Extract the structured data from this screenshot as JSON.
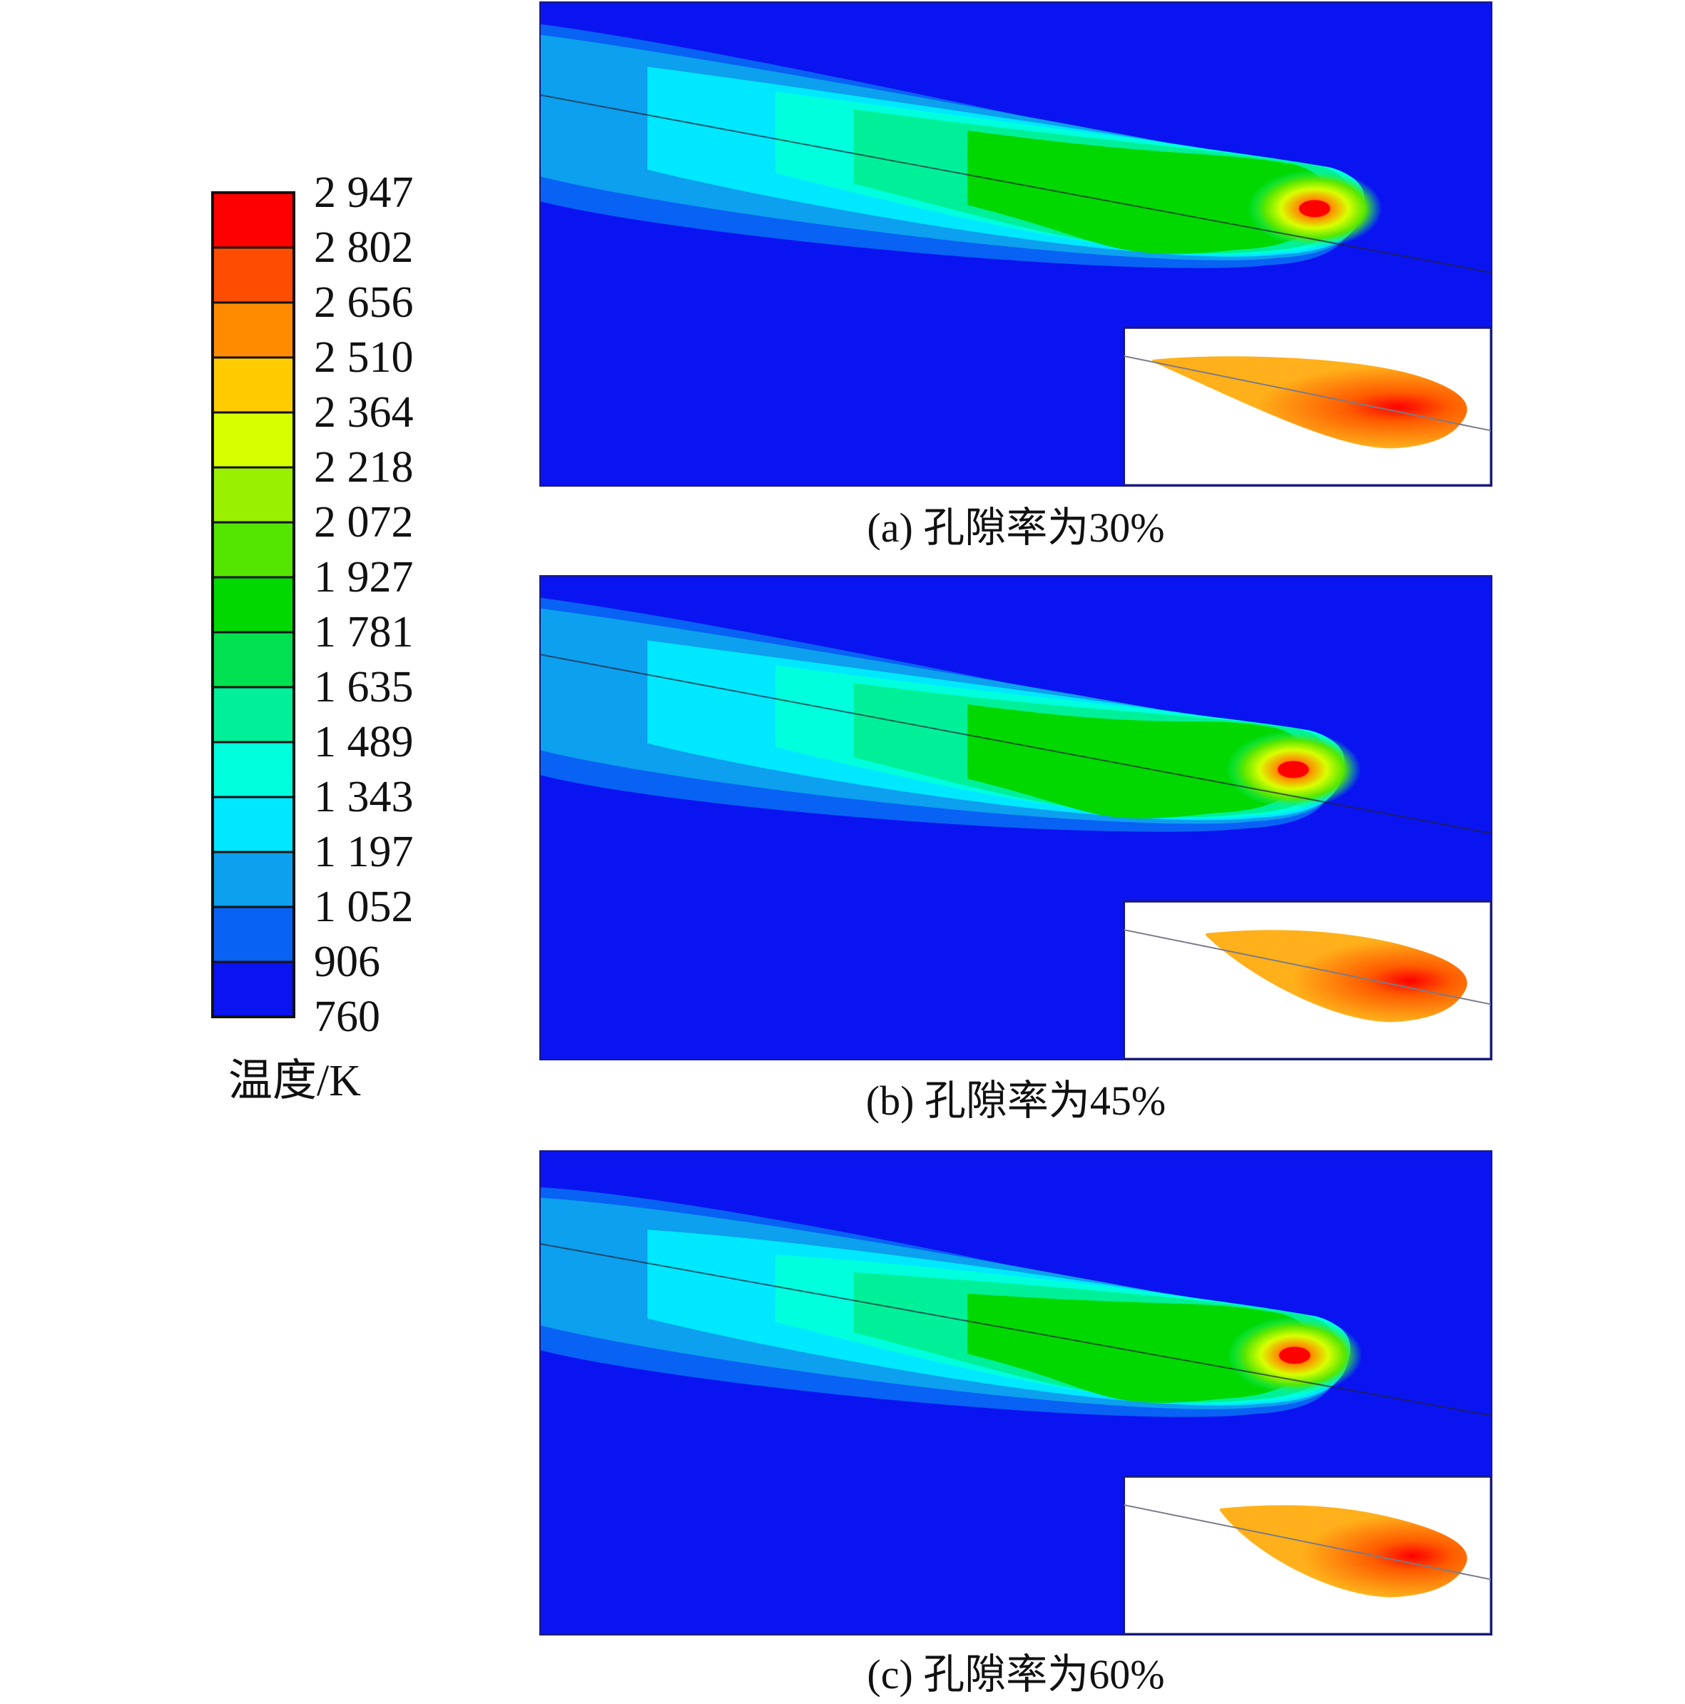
{
  "legend": {
    "title": "温度/K",
    "labels": [
      "2 947",
      "2 802",
      "2 656",
      "2 510",
      "2 364",
      "2 218",
      "2 072",
      "1 927",
      "1 781",
      "1 635",
      "1 489",
      "1 343",
      "1 197",
      "1 052",
      "906",
      "760"
    ],
    "colors": [
      "#ff0000",
      "#ff4d00",
      "#ff8c00",
      "#ffcc00",
      "#d8ff00",
      "#99f000",
      "#55e600",
      "#00d800",
      "#00e050",
      "#00f09a",
      "#00ffdd",
      "#00e8ff",
      "#0ca0ee",
      "#0862f4",
      "#0a14f0"
    ]
  },
  "panels": [
    {
      "caption": "(a) 孔隙率为30%"
    },
    {
      "caption": "(b) 孔隙率为45%"
    },
    {
      "caption": "(c) 孔隙率为60%"
    }
  ]
}
